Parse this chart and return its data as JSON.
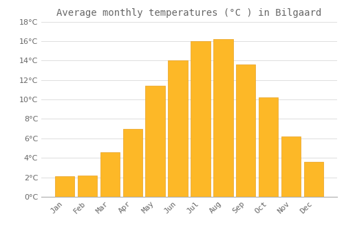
{
  "title": "Average monthly temperatures (°C ) in Bilgaard",
  "months": [
    "Jan",
    "Feb",
    "Mar",
    "Apr",
    "May",
    "Jun",
    "Jul",
    "Aug",
    "Sep",
    "Oct",
    "Nov",
    "Dec"
  ],
  "temperatures": [
    2.1,
    2.2,
    4.6,
    7.0,
    11.4,
    14.0,
    16.0,
    16.2,
    13.6,
    10.2,
    6.2,
    3.6
  ],
  "bar_color": "#FDB827",
  "bar_edge_color": "#E8A020",
  "background_color": "#FFFFFF",
  "grid_color": "#DDDDDD",
  "text_color": "#666666",
  "ylim": [
    0,
    18
  ],
  "yticks": [
    0,
    2,
    4,
    6,
    8,
    10,
    12,
    14,
    16,
    18
  ],
  "title_fontsize": 10,
  "tick_fontsize": 8,
  "bar_width": 0.85
}
